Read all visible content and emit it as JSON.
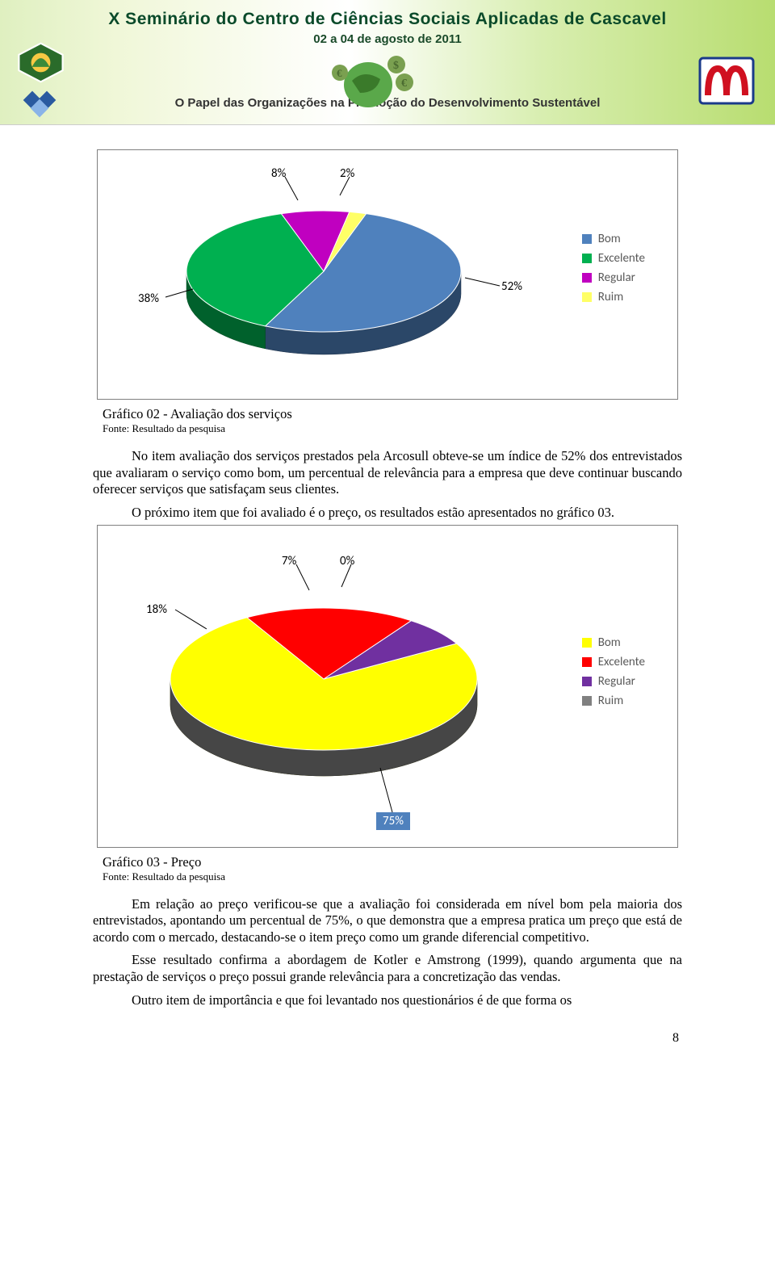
{
  "banner": {
    "title": "X Seminário do Centro de Ciências Sociais Aplicadas de Cascavel",
    "date": "02 a 04 de agosto de 2011",
    "subtitle": "O Papel das Organizações na Promoção do Desenvolvimento Sustentável"
  },
  "chart1": {
    "type": "pie",
    "caption": "Gráfico 02 - Avaliação dos serviços",
    "fonte": "Fonte: Resultado da pesquisa",
    "slices": [
      {
        "label": "Bom",
        "value": 52,
        "color": "#4f81bd",
        "pct_text": "52%"
      },
      {
        "label": "Excelente",
        "value": 38,
        "color": "#00b050",
        "pct_text": "38%"
      },
      {
        "label": "Regular",
        "value": 8,
        "color": "#c000c0",
        "pct_text": "8%"
      },
      {
        "label": "Ruim",
        "value": 2,
        "color": "#ffff66",
        "pct_text": "2%"
      }
    ],
    "label_fontsize": 15,
    "label_color": "#595959",
    "pct_fontsize": 15,
    "background_color": "#ffffff",
    "border_color": "#808080",
    "tilt": 60,
    "depth": 28
  },
  "para1": "No item avaliação dos serviços prestados pela Arcosull obteve-se um índice de 52% dos entrevistados que avaliaram o serviço como bom, um percentual de relevância para a empresa que deve continuar buscando oferecer serviços que satisfaçam seus clientes.",
  "para2": "O próximo item que foi avaliado é o preço, os resultados estão apresentados no gráfico 03.",
  "chart2": {
    "type": "pie",
    "caption": "Gráfico 03 - Preço",
    "fonte": "Fonte: Resultado da pesquisa",
    "slices": [
      {
        "label": "Bom",
        "value": 75,
        "color": "#ffff00",
        "pct_text": "75%"
      },
      {
        "label": "Excelente",
        "value": 18,
        "color": "#ff0000",
        "pct_text": "18%"
      },
      {
        "label": "Regular",
        "value": 7,
        "color": "#7030a0",
        "pct_text": "7%"
      },
      {
        "label": "Ruim",
        "value": 0,
        "color": "#808080",
        "pct_text": "0%"
      }
    ],
    "label_fontsize": 15,
    "label_color": "#595959",
    "pct_fontsize": 15,
    "background_color": "#ffffff",
    "border_color": "#808080",
    "tilt": 60,
    "depth": 32,
    "pct75_box_bg": "#4f81bd",
    "pct75_box_text": "#ffffff"
  },
  "para3": "Em relação ao preço verificou-se que a avaliação foi considerada em nível bom pela maioria dos entrevistados, apontando um percentual de 75%, o que demonstra que a empresa pratica um preço que está de acordo com o mercado, destacando-se o item preço como um grande diferencial competitivo.",
  "para4": "Esse resultado confirma a abordagem de Kotler e Amstrong (1999), quando argumenta que na prestação de serviços o preço possui grande relevância para a concretização das vendas.",
  "para5": "Outro item de importância e que foi levantado nos questionários é de que forma os",
  "page_number": "8"
}
